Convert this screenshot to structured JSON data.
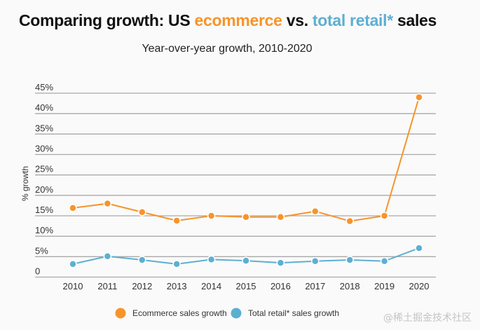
{
  "title": {
    "part1": "Comparing growth: US ",
    "part2": "ecommerce",
    "part3": " vs. ",
    "part4": "total retail*",
    "part5": " sales"
  },
  "watermark": "@稀土掘金技术社区",
  "chart_data": {
    "type": "line",
    "title": "Comparing growth: US ecommerce vs. total retail* sales",
    "subtitle": "Year-over-year growth, 2010-2020",
    "xlabel": "",
    "ylabel": "% growth",
    "x": [
      "2010",
      "2011",
      "2012",
      "2013",
      "2014",
      "2015",
      "2016",
      "2017",
      "2018",
      "2019",
      "2020"
    ],
    "ylim": [
      0,
      45
    ],
    "yticks": [
      0,
      5,
      10,
      15,
      20,
      25,
      30,
      35,
      40,
      45
    ],
    "ytick_labels": [
      "0",
      "5%",
      "10%",
      "15%",
      "20%",
      "25%",
      "30%",
      "35%",
      "40%",
      "45%"
    ],
    "grid": true,
    "legend_position": "bottom",
    "series": [
      {
        "name": "Ecommerce sales growth",
        "color": "#f7942a",
        "values": [
          16.9,
          18.0,
          15.9,
          13.8,
          15.0,
          14.7,
          14.7,
          16.1,
          13.7,
          15.0,
          44.0
        ]
      },
      {
        "name": "Total retail* sales growth",
        "color": "#5dafd2",
        "values": [
          3.2,
          5.1,
          4.2,
          3.2,
          4.3,
          4.0,
          3.5,
          3.9,
          4.2,
          3.9,
          7.1
        ]
      }
    ]
  }
}
